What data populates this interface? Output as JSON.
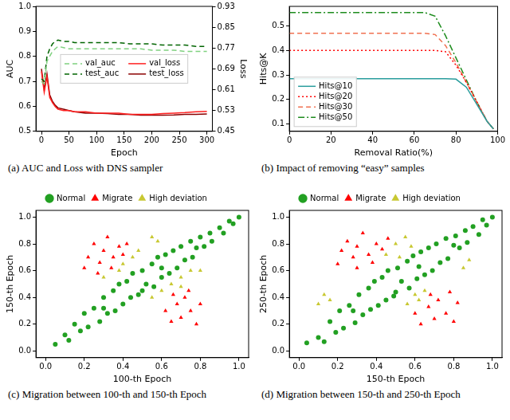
{
  "chart_data": [
    {
      "type": "line",
      "title": "(a)  AUC and Loss with DNS sampler",
      "x_label": "Epoch",
      "y_label": "AUC",
      "y2_label": "Loss",
      "x": [
        0,
        5,
        10,
        15,
        20,
        25,
        30,
        40,
        50,
        60,
        80,
        100,
        120,
        140,
        160,
        180,
        200,
        220,
        240,
        260,
        280,
        300
      ],
      "series": [
        {
          "name": "val_auc",
          "color": "#7fd17f",
          "line_style": "dashed",
          "values": [
            0.7,
            0.69,
            0.78,
            0.8,
            0.82,
            0.83,
            0.84,
            0.835,
            0.83,
            0.83,
            0.83,
            0.83,
            0.83,
            0.83,
            0.83,
            0.83,
            0.825,
            0.825,
            0.825,
            0.82,
            0.82,
            0.82
          ]
        },
        {
          "name": "test_auc",
          "color": "#006400",
          "line_style": "dashed",
          "values": [
            0.71,
            0.7,
            0.8,
            0.83,
            0.85,
            0.86,
            0.865,
            0.86,
            0.86,
            0.855,
            0.855,
            0.855,
            0.855,
            0.855,
            0.85,
            0.85,
            0.85,
            0.845,
            0.845,
            0.845,
            0.84,
            0.84
          ]
        },
        {
          "name": "val_loss",
          "color": "#ff2020",
          "line_style": "solid",
          "axis": "y2",
          "values": [
            0.68,
            0.6,
            0.66,
            0.58,
            0.56,
            0.545,
            0.535,
            0.53,
            0.53,
            0.525,
            0.525,
            0.52,
            0.52,
            0.52,
            0.515,
            0.515,
            0.515,
            0.518,
            0.52,
            0.522,
            0.525,
            0.527
          ]
        },
        {
          "name": "test_loss",
          "color": "#8b0000",
          "line_style": "solid",
          "axis": "y2",
          "values": [
            0.69,
            0.61,
            0.67,
            0.59,
            0.565,
            0.55,
            0.54,
            0.535,
            0.53,
            0.525,
            0.52,
            0.52,
            0.518,
            0.515,
            0.515,
            0.512,
            0.512,
            0.512,
            0.513,
            0.515,
            0.515,
            0.517
          ]
        }
      ],
      "xlim": [
        -10,
        310
      ],
      "xticks": [
        0,
        50,
        100,
        150,
        200,
        250,
        300
      ],
      "ylim": [
        0.5,
        1.0
      ],
      "yticks": [
        0.5,
        0.6,
        0.7,
        0.8,
        0.9,
        {
          "value": 1,
          "label": "1.0"
        }
      ],
      "y2lim": [
        0.45,
        0.93
      ],
      "y2ticks": [
        0.45,
        0.53,
        0.61,
        0.69,
        0.77,
        0.85,
        0.93
      ],
      "grid": false,
      "legend": "center"
    },
    {
      "type": "line",
      "title": "(b)  Impact of removing “easy” samples",
      "x_label": "Removal Ratio(%)",
      "y_label": "Hits@K",
      "x": [
        0,
        10,
        20,
        30,
        40,
        50,
        60,
        65,
        70,
        75,
        80,
        85,
        90,
        95,
        98
      ],
      "series": [
        {
          "name": "Hits@10",
          "color": "#2a9d9d",
          "line_style": "solid",
          "values": [
            0.285,
            0.285,
            0.285,
            0.285,
            0.285,
            0.285,
            0.285,
            0.285,
            0.285,
            0.285,
            0.283,
            0.25,
            0.18,
            0.11,
            0.08
          ]
        },
        {
          "name": "Hits@20",
          "color": "#ff0000",
          "line_style": "dotted",
          "values": [
            0.4,
            0.4,
            0.4,
            0.4,
            0.4,
            0.4,
            0.4,
            0.4,
            0.4,
            0.395,
            0.34,
            0.27,
            0.19,
            0.11,
            0.08
          ]
        },
        {
          "name": "Hits@30",
          "color": "#f07050",
          "line_style": "dashed",
          "values": [
            0.47,
            0.47,
            0.47,
            0.47,
            0.47,
            0.47,
            0.47,
            0.47,
            0.465,
            0.42,
            0.35,
            0.27,
            0.19,
            0.11,
            0.08
          ]
        },
        {
          "name": "Hits@50",
          "color": "#1e8c1e",
          "line_style": "dashdot",
          "values": [
            0.555,
            0.555,
            0.555,
            0.555,
            0.555,
            0.555,
            0.555,
            0.555,
            0.54,
            0.46,
            0.37,
            0.28,
            0.19,
            0.11,
            0.08
          ]
        }
      ],
      "xlim": [
        0,
        100
      ],
      "xticks": [
        0,
        20,
        40,
        60,
        80,
        100
      ],
      "ylim": [
        0.07,
        0.58
      ],
      "yticks": [
        0.1,
        0.2,
        0.3,
        0.4,
        0.5
      ],
      "grid": false,
      "legend": "lower left"
    },
    {
      "type": "scatter",
      "title": "(c)  Migration between 100-th and 150-th Epoch",
      "x_label": "100-th Epoch",
      "y_label": "150-th Epoch",
      "series": [
        {
          "name": "Normal",
          "color": "#22a022",
          "marker": "circle",
          "values": [
            [
              0.05,
              0.05
            ],
            [
              0.1,
              0.12
            ],
            [
              0.12,
              0.08
            ],
            [
              0.15,
              0.2
            ],
            [
              0.18,
              0.15
            ],
            [
              0.2,
              0.28
            ],
            [
              0.22,
              0.18
            ],
            [
              0.25,
              0.32
            ],
            [
              0.28,
              0.22
            ],
            [
              0.3,
              0.4
            ],
            [
              0.32,
              0.28
            ],
            [
              0.35,
              0.45
            ],
            [
              0.36,
              0.3
            ],
            [
              0.38,
              0.5
            ],
            [
              0.4,
              0.35
            ],
            [
              0.42,
              0.52
            ],
            [
              0.44,
              0.4
            ],
            [
              0.45,
              0.58
            ],
            [
              0.48,
              0.42
            ],
            [
              0.5,
              0.6
            ],
            [
              0.5,
              0.45
            ],
            [
              0.52,
              0.5
            ],
            [
              0.55,
              0.65
            ],
            [
              0.56,
              0.48
            ],
            [
              0.58,
              0.7
            ],
            [
              0.6,
              0.55
            ],
            [
              0.62,
              0.72
            ],
            [
              0.64,
              0.58
            ],
            [
              0.66,
              0.75
            ],
            [
              0.68,
              0.62
            ],
            [
              0.7,
              0.78
            ],
            [
              0.72,
              0.68
            ],
            [
              0.75,
              0.82
            ],
            [
              0.76,
              0.7
            ],
            [
              0.8,
              0.85
            ],
            [
              0.82,
              0.78
            ],
            [
              0.85,
              0.88
            ],
            [
              0.86,
              0.82
            ],
            [
              0.9,
              0.92
            ],
            [
              0.92,
              0.88
            ],
            [
              0.95,
              0.97
            ],
            [
              0.97,
              0.95
            ],
            [
              1.0,
              1.0
            ],
            [
              0.3,
              0.32
            ],
            [
              0.6,
              0.62
            ],
            [
              0.78,
              0.77
            ]
          ]
        },
        {
          "name": "Migrate",
          "color": "#ff0000",
          "marker": "triangle",
          "values": [
            [
              0.2,
              0.62
            ],
            [
              0.22,
              0.7
            ],
            [
              0.25,
              0.8
            ],
            [
              0.28,
              0.66
            ],
            [
              0.3,
              0.75
            ],
            [
              0.32,
              0.85
            ],
            [
              0.35,
              0.7
            ],
            [
              0.38,
              0.78
            ],
            [
              0.4,
              0.72
            ],
            [
              0.42,
              0.8
            ],
            [
              0.27,
              0.58
            ],
            [
              0.34,
              0.62
            ],
            [
              0.62,
              0.3
            ],
            [
              0.65,
              0.22
            ],
            [
              0.68,
              0.35
            ],
            [
              0.7,
              0.25
            ],
            [
              0.72,
              0.4
            ],
            [
              0.75,
              0.3
            ],
            [
              0.78,
              0.2
            ],
            [
              0.8,
              0.35
            ],
            [
              0.66,
              0.42
            ],
            [
              0.74,
              0.45
            ]
          ]
        },
        {
          "name": "High deviation",
          "color": "#c8c832",
          "marker": "triangle",
          "values": [
            [
              0.3,
              0.55
            ],
            [
              0.38,
              0.6
            ],
            [
              0.45,
              0.7
            ],
            [
              0.48,
              0.75
            ],
            [
              0.55,
              0.85
            ],
            [
              0.4,
              0.65
            ],
            [
              0.58,
              0.82
            ],
            [
              0.55,
              0.4
            ],
            [
              0.6,
              0.45
            ],
            [
              0.65,
              0.5
            ],
            [
              0.7,
              0.55
            ],
            [
              0.75,
              0.6
            ],
            [
              0.8,
              0.6
            ],
            [
              0.7,
              0.48
            ]
          ]
        }
      ],
      "xlim": [
        -0.05,
        1.05
      ],
      "xticks": [
        {
          "value": 0,
          "label": "0.0"
        },
        0.2,
        0.4,
        0.6,
        0.8,
        {
          "value": 1,
          "label": "1.0"
        }
      ],
      "ylim": [
        -0.05,
        1.05
      ],
      "yticks": [
        {
          "value": 0,
          "label": "0.0"
        },
        0.2,
        0.4,
        0.6,
        0.8,
        {
          "value": 1,
          "label": "1.0"
        }
      ],
      "grid": false,
      "legend": "top"
    },
    {
      "type": "scatter",
      "title": "(d)  Migration between 150-th and 250-th Epoch",
      "x_label": "150-th Epoch",
      "y_label": "250-th Epoch",
      "series": [
        {
          "name": "Normal",
          "color": "#22a022",
          "marker": "circle",
          "values": [
            [
              0.04,
              0.06
            ],
            [
              0.1,
              0.1
            ],
            [
              0.13,
              0.07
            ],
            [
              0.16,
              0.22
            ],
            [
              0.19,
              0.14
            ],
            [
              0.21,
              0.3
            ],
            [
              0.23,
              0.17
            ],
            [
              0.26,
              0.34
            ],
            [
              0.29,
              0.21
            ],
            [
              0.31,
              0.42
            ],
            [
              0.33,
              0.27
            ],
            [
              0.36,
              0.47
            ],
            [
              0.37,
              0.31
            ],
            [
              0.39,
              0.52
            ],
            [
              0.41,
              0.34
            ],
            [
              0.43,
              0.55
            ],
            [
              0.45,
              0.38
            ],
            [
              0.46,
              0.6
            ],
            [
              0.49,
              0.41
            ],
            [
              0.51,
              0.62
            ],
            [
              0.5,
              0.44
            ],
            [
              0.53,
              0.52
            ],
            [
              0.56,
              0.67
            ],
            [
              0.57,
              0.47
            ],
            [
              0.59,
              0.71
            ],
            [
              0.61,
              0.54
            ],
            [
              0.63,
              0.74
            ],
            [
              0.65,
              0.57
            ],
            [
              0.67,
              0.77
            ],
            [
              0.69,
              0.6
            ],
            [
              0.71,
              0.8
            ],
            [
              0.73,
              0.66
            ],
            [
              0.76,
              0.84
            ],
            [
              0.77,
              0.69
            ],
            [
              0.81,
              0.86
            ],
            [
              0.83,
              0.77
            ],
            [
              0.86,
              0.9
            ],
            [
              0.87,
              0.81
            ],
            [
              0.9,
              0.93
            ],
            [
              0.93,
              0.87
            ],
            [
              0.95,
              0.98
            ],
            [
              0.97,
              0.94
            ],
            [
              1.0,
              1.0
            ],
            [
              0.28,
              0.3
            ],
            [
              0.62,
              0.63
            ],
            [
              0.8,
              0.79
            ]
          ]
        },
        {
          "name": "Migrate",
          "color": "#ff0000",
          "marker": "triangle",
          "values": [
            [
              0.2,
              0.65
            ],
            [
              0.22,
              0.75
            ],
            [
              0.25,
              0.82
            ],
            [
              0.28,
              0.7
            ],
            [
              0.3,
              0.78
            ],
            [
              0.33,
              0.88
            ],
            [
              0.36,
              0.72
            ],
            [
              0.4,
              0.8
            ],
            [
              0.43,
              0.76
            ],
            [
              0.46,
              0.84
            ],
            [
              0.3,
              0.62
            ],
            [
              0.38,
              0.66
            ],
            [
              0.6,
              0.28
            ],
            [
              0.63,
              0.2
            ],
            [
              0.67,
              0.33
            ],
            [
              0.7,
              0.24
            ],
            [
              0.72,
              0.38
            ],
            [
              0.76,
              0.28
            ],
            [
              0.8,
              0.22
            ],
            [
              0.82,
              0.36
            ],
            [
              0.68,
              0.42
            ],
            [
              0.78,
              0.44
            ]
          ]
        },
        {
          "name": "High deviation",
          "color": "#c8c832",
          "marker": "triangle",
          "values": [
            [
              0.1,
              0.35
            ],
            [
              0.13,
              0.42
            ],
            [
              0.16,
              0.38
            ],
            [
              0.45,
              0.72
            ],
            [
              0.5,
              0.8
            ],
            [
              0.55,
              0.85
            ],
            [
              0.58,
              0.78
            ],
            [
              0.52,
              0.7
            ],
            [
              0.56,
              0.35
            ],
            [
              0.6,
              0.42
            ],
            [
              0.62,
              0.38
            ],
            [
              0.85,
              0.62
            ],
            [
              0.88,
              0.68
            ],
            [
              0.65,
              0.45
            ]
          ]
        }
      ],
      "xlim": [
        -0.05,
        1.05
      ],
      "xticks": [
        {
          "value": 0,
          "label": "0.0"
        },
        0.2,
        0.4,
        0.6,
        0.8,
        {
          "value": 1,
          "label": "1.0"
        }
      ],
      "ylim": [
        -0.05,
        1.05
      ],
      "yticks": [
        {
          "value": 0,
          "label": "0.0"
        },
        0.2,
        0.4,
        0.6,
        0.8,
        {
          "value": 1,
          "label": "1.0"
        }
      ],
      "grid": false,
      "legend": "top"
    }
  ]
}
